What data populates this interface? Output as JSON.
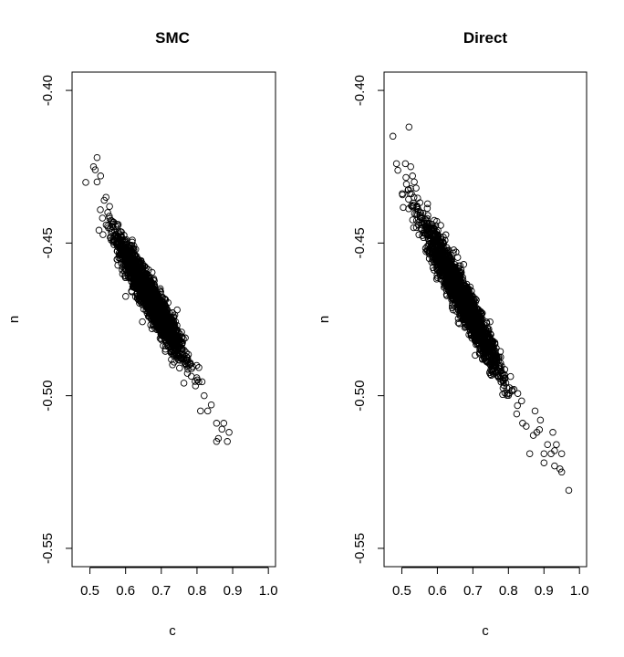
{
  "chart_data": [
    {
      "type": "scatter",
      "title": "SMC",
      "xlabel": "c",
      "ylabel": "n",
      "xlim": [
        0.45,
        1.02
      ],
      "ylim": [
        -0.556,
        -0.394
      ],
      "xticks": [
        0.5,
        0.6,
        0.7,
        0.8,
        0.9,
        1.0
      ],
      "xtick_labels": [
        "0.5",
        "0.6",
        "0.7",
        "0.8",
        "0.9",
        "1.0"
      ],
      "yticks": [
        -0.4,
        -0.45,
        -0.5,
        -0.55
      ],
      "ytick_labels": [
        "-0.40",
        "-0.45",
        "-0.50",
        "-0.55"
      ],
      "grid": false,
      "cloud": {
        "n": 2000,
        "c_mean": 0.67,
        "c_sd": 0.045,
        "n_mean": -0.468,
        "slope": -0.2,
        "resid_sd": 0.0032
      },
      "points": [
        {
          "x": 0.51,
          "y": -0.425
        },
        {
          "x": 0.515,
          "y": -0.426
        },
        {
          "x": 0.52,
          "y": -0.422
        },
        {
          "x": 0.53,
          "y": -0.428
        },
        {
          "x": 0.52,
          "y": -0.43
        },
        {
          "x": 0.54,
          "y": -0.436
        },
        {
          "x": 0.545,
          "y": -0.435
        },
        {
          "x": 0.55,
          "y": -0.44
        },
        {
          "x": 0.555,
          "y": -0.438
        },
        {
          "x": 0.83,
          "y": -0.505
        },
        {
          "x": 0.84,
          "y": -0.503
        },
        {
          "x": 0.855,
          "y": -0.509
        },
        {
          "x": 0.86,
          "y": -0.514
        },
        {
          "x": 0.87,
          "y": -0.511
        },
        {
          "x": 0.875,
          "y": -0.509
        },
        {
          "x": 0.885,
          "y": -0.515
        },
        {
          "x": 0.855,
          "y": -0.515
        },
        {
          "x": 0.89,
          "y": -0.512
        },
        {
          "x": 0.82,
          "y": -0.5
        },
        {
          "x": 0.81,
          "y": -0.505
        }
      ]
    },
    {
      "type": "scatter",
      "title": "Direct",
      "xlabel": "c",
      "ylabel": "n",
      "xlim": [
        0.45,
        1.02
      ],
      "ylim": [
        -0.556,
        -0.394
      ],
      "xticks": [
        0.5,
        0.6,
        0.7,
        0.8,
        0.9,
        1.0
      ],
      "xtick_labels": [
        "0.5",
        "0.6",
        "0.7",
        "0.8",
        "0.9",
        "1.0"
      ],
      "yticks": [
        -0.4,
        -0.45,
        -0.5,
        -0.55
      ],
      "ytick_labels": [
        "-0.40",
        "-0.45",
        "-0.50",
        "-0.55"
      ],
      "grid": false,
      "cloud": {
        "n": 2000,
        "c_mean": 0.665,
        "c_sd": 0.055,
        "n_mean": -0.467,
        "slope": -0.22,
        "resid_sd": 0.0034
      },
      "points": [
        {
          "x": 0.475,
          "y": -0.415
        },
        {
          "x": 0.485,
          "y": -0.424
        },
        {
          "x": 0.51,
          "y": -0.424
        },
        {
          "x": 0.52,
          "y": -0.412
        },
        {
          "x": 0.525,
          "y": -0.425
        },
        {
          "x": 0.53,
          "y": -0.428
        },
        {
          "x": 0.535,
          "y": -0.43
        },
        {
          "x": 0.54,
          "y": -0.432
        },
        {
          "x": 0.97,
          "y": -0.531
        },
        {
          "x": 0.95,
          "y": -0.525
        },
        {
          "x": 0.945,
          "y": -0.524
        },
        {
          "x": 0.95,
          "y": -0.519
        },
        {
          "x": 0.935,
          "y": -0.516
        },
        {
          "x": 0.93,
          "y": -0.518
        },
        {
          "x": 0.925,
          "y": -0.512
        },
        {
          "x": 0.92,
          "y": -0.519
        },
        {
          "x": 0.91,
          "y": -0.516
        },
        {
          "x": 0.9,
          "y": -0.519
        },
        {
          "x": 0.9,
          "y": -0.522
        },
        {
          "x": 0.93,
          "y": -0.523
        },
        {
          "x": 0.88,
          "y": -0.512
        },
        {
          "x": 0.87,
          "y": -0.513
        },
        {
          "x": 0.86,
          "y": -0.519
        },
        {
          "x": 0.89,
          "y": -0.508
        },
        {
          "x": 0.875,
          "y": -0.505
        },
        {
          "x": 0.85,
          "y": -0.51
        },
        {
          "x": 0.84,
          "y": -0.509
        }
      ]
    }
  ]
}
